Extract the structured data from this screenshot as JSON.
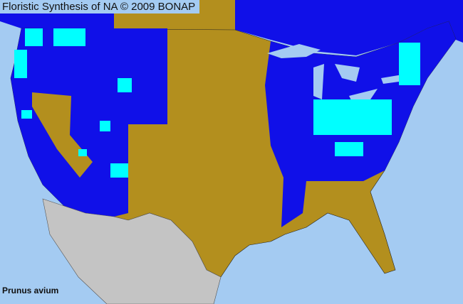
{
  "title": "Floristic Synthesis of NA © 2009 BONAP",
  "species": "Prunus avium",
  "colors": {
    "ocean": "#a4cbf2",
    "present_state": "#1010e8",
    "absent_state": "#b38f1e",
    "county_present": "#00ffff",
    "outside_range": "#c4c4c4"
  }
}
